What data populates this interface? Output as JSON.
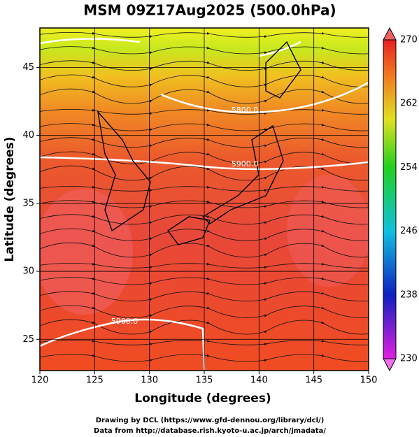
{
  "chart_data": {
    "type": "contour-map",
    "title": "MSM 09Z17Aug2025 (500.0hPa)",
    "x_label": "Longitude (degrees)",
    "y_label": "Latitude  (degrees)",
    "xlim": [
      120,
      150
    ],
    "xticks": [
      120,
      125,
      130,
      135,
      140,
      145,
      150
    ],
    "ylim": [
      22.7,
      47.9
    ],
    "yticks": [
      25,
      30,
      35,
      40,
      45
    ],
    "grid": true,
    "colorbar": {
      "lim": [
        230,
        270
      ],
      "ticks": [
        230,
        238,
        246,
        254,
        262,
        270
      ]
    },
    "contour_labels": [
      "5800.0",
      "5900.0",
      "5900.0"
    ],
    "footer": [
      "Drawing by DCL (https://www.gfd-dennou.org/library/dcl/)",
      "Data from http://database.rish.kyoto-u.ac.jp/arch/jmadata/"
    ]
  }
}
